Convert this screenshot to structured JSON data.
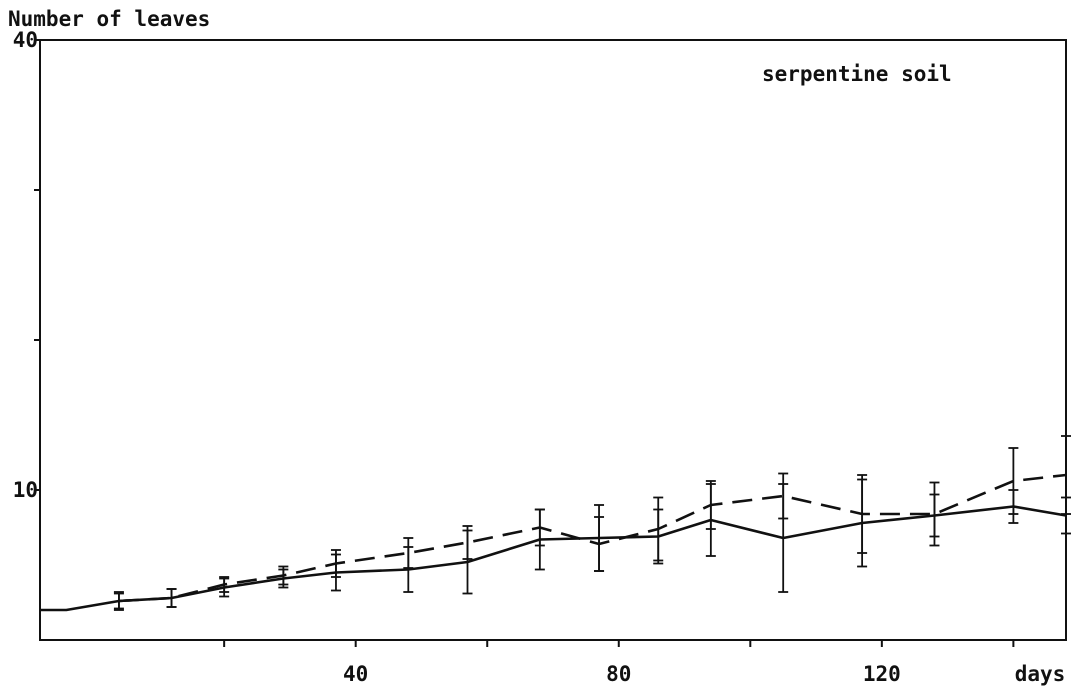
{
  "chart_data": {
    "type": "line",
    "ylabel": "Number of leaves",
    "xlabel": "days",
    "annotation": "serpentine soil",
    "xlim": [
      -8,
      148
    ],
    "ylim": [
      0,
      40
    ],
    "x_ticks": [
      40,
      80,
      120
    ],
    "y_ticks": [
      10,
      40
    ],
    "y_minor_ticks": [
      20,
      30
    ],
    "x_minor_ticks": [
      20,
      60,
      100,
      140
    ],
    "grid": false,
    "series": [
      {
        "style": "solid",
        "x": [
          -8,
          -4,
          4,
          12,
          20,
          29,
          37,
          48,
          57,
          68,
          77,
          86,
          94,
          105,
          117,
          128,
          140,
          148
        ],
        "y": [
          2.0,
          2.0,
          2.6,
          2.8,
          3.5,
          4.1,
          4.5,
          4.7,
          5.2,
          6.7,
          6.8,
          6.9,
          8.0,
          6.8,
          7.8,
          8.3,
          8.9,
          8.3
        ],
        "err": [
          0,
          0,
          0.6,
          0.6,
          0.6,
          0.6,
          1.2,
          1.5,
          2.1,
          2.0,
          2.2,
          1.8,
          2.4,
          3.6,
          2.9,
          1.4,
          1.1,
          1.2
        ]
      },
      {
        "style": "dashed",
        "x": [
          4,
          12,
          20,
          29,
          37,
          48,
          57,
          68,
          77,
          86,
          94,
          105,
          117,
          128,
          140,
          148
        ],
        "y": [
          2.6,
          2.8,
          3.7,
          4.3,
          5.1,
          5.8,
          6.5,
          7.5,
          6.4,
          7.4,
          9.0,
          9.6,
          8.4,
          8.4,
          10.6,
          11.0
        ],
        "err": [
          0.5,
          0.6,
          0.5,
          0.6,
          0.9,
          1.0,
          1.1,
          1.2,
          1.8,
          2.1,
          1.6,
          1.5,
          2.6,
          2.1,
          2.2,
          2.6
        ]
      }
    ]
  }
}
